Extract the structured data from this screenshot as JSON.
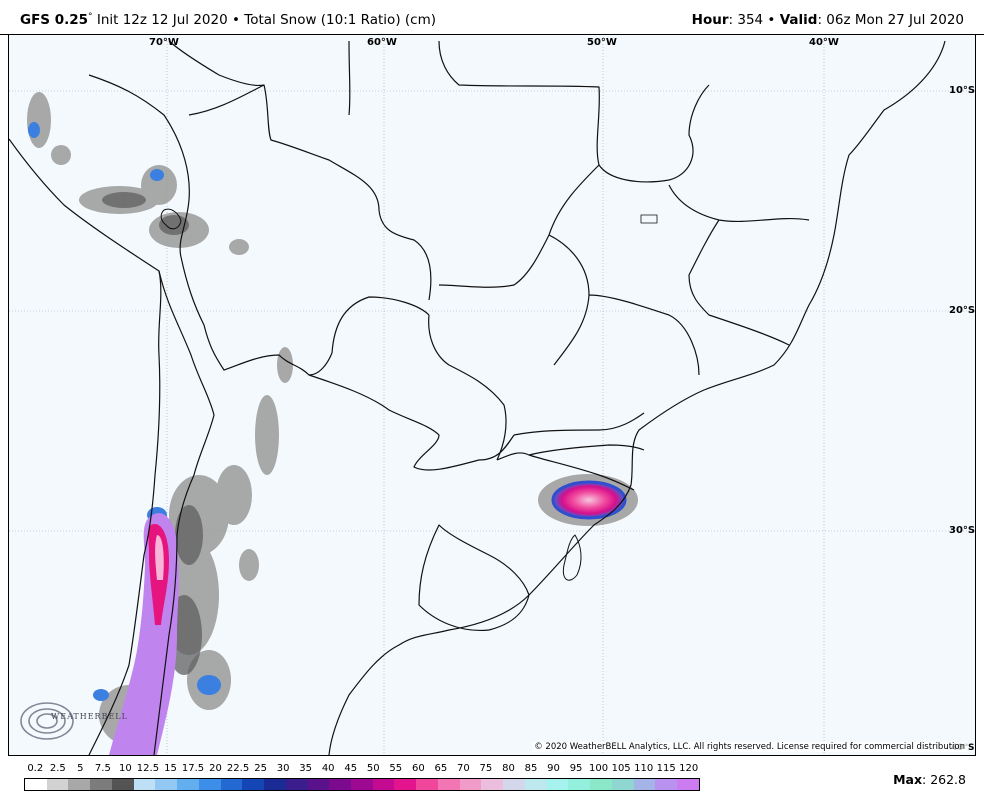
{
  "header": {
    "model": "GFS 0.25",
    "degree_sign": "°",
    "init": "Init 12z 12 Jul 2020",
    "bullet": "•",
    "product": "Total Snow (10:1 Ratio) (cm)",
    "hour_label": "Hour",
    "hour_value": ": 354",
    "valid_label": "Valid",
    "valid_value": ": 06z Mon 27 Jul 2020"
  },
  "map": {
    "longitude_labels": [
      "70°W",
      "60°W",
      "50°W",
      "40°W"
    ],
    "latitude_labels": [
      "10°S",
      "20°S",
      "30°S",
      "40°S"
    ],
    "copyright": "© 2020 WeatherBELL Analytics, LLC. All rights reserved. License required for commercial distribution",
    "logo_text": "WEATHERBELL",
    "colors": {
      "background": "#f4f9fd",
      "borders": "#111111",
      "gridlines": "#9aa6b0"
    },
    "max_label": "Max",
    "max_value": ": 262.8"
  },
  "legend": {
    "ticks": [
      "0.2",
      "2.5",
      "5",
      "7.5",
      "10",
      "12.5",
      "15",
      "17.5",
      "20",
      "22.5",
      "25",
      "30",
      "35",
      "40",
      "45",
      "50",
      "55",
      "60",
      "65",
      "70",
      "75",
      "80",
      "85",
      "90",
      "95",
      "100",
      "105",
      "110",
      "115",
      "120"
    ],
    "colors": [
      "#ffffff",
      "#d2d2d2",
      "#a8a8a8",
      "#7c7c7c",
      "#545454",
      "#bde0f7",
      "#93c8f2",
      "#63aeee",
      "#3c8ee8",
      "#2468d2",
      "#1546b6",
      "#1b2b96",
      "#3b1d8e",
      "#5a118c",
      "#7c0a8e",
      "#9e0991",
      "#c40a90",
      "#e3148e",
      "#f0469c",
      "#f275b4",
      "#f19bc9",
      "#ebbedd",
      "#d4d7ec",
      "#bde8ee",
      "#a6f2ee",
      "#93f0dc",
      "#8ae8c8",
      "#8fd6d2",
      "#a5b4e6",
      "#b892ee",
      "#cc7cf0"
    ]
  }
}
